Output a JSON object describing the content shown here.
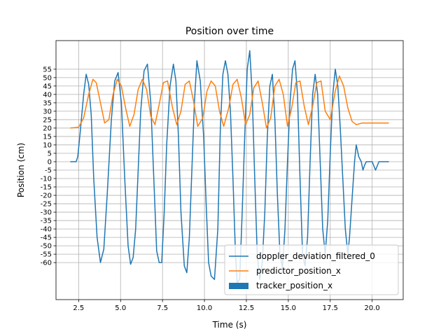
{
  "chart_data": {
    "type": "line",
    "title": "Position over time",
    "xlabel": "Time (s)",
    "ylabel": "Position (cm)",
    "xlim": [
      1.15,
      21.85
    ],
    "ylim": [
      -82,
      72
    ],
    "grid": true,
    "legend_position": "lower right",
    "xticks": [
      2.5,
      5.0,
      7.5,
      10.0,
      12.5,
      15.0,
      17.5,
      20.0
    ],
    "xtick_labels": [
      "2.5",
      "5.0",
      "7.5",
      "10.0",
      "12.5",
      "15.0",
      "17.5",
      "20.0"
    ],
    "yticks": [
      -60,
      -55,
      -50,
      -45,
      -40,
      -35,
      -30,
      -25,
      -20,
      -15,
      -10,
      -5,
      0,
      5,
      10,
      15,
      20,
      25,
      30,
      35,
      40,
      45,
      50,
      55
    ],
    "ytick_labels": [
      "-60",
      "-55",
      "-50",
      "-45",
      "-40",
      "-35",
      "-30",
      "-25",
      "-20",
      "-15",
      "-10",
      "-5",
      "0",
      "5",
      "10",
      "15",
      "20",
      "25",
      "30",
      "35",
      "40",
      "45",
      "50",
      "55"
    ],
    "series": [
      {
        "name": "doppler_deviation_filtered_0",
        "kind": "line",
        "color": "#1f77b4",
        "x": [
          2.0,
          2.35,
          2.45,
          2.6,
          2.8,
          2.95,
          3.1,
          3.25,
          3.4,
          3.6,
          3.8,
          4.0,
          4.2,
          4.45,
          4.65,
          4.85,
          5.05,
          5.25,
          5.45,
          5.6,
          5.75,
          5.9,
          6.05,
          6.2,
          6.4,
          6.6,
          6.8,
          7.0,
          7.15,
          7.3,
          7.45,
          7.6,
          7.75,
          7.95,
          8.15,
          8.3,
          8.45,
          8.6,
          8.8,
          8.95,
          9.1,
          9.25,
          9.4,
          9.55,
          9.75,
          9.95,
          10.1,
          10.25,
          10.4,
          10.6,
          10.8,
          10.95,
          11.1,
          11.25,
          11.4,
          11.55,
          11.7,
          11.85,
          11.95,
          12.1,
          12.25,
          12.4,
          12.55,
          12.7,
          12.85,
          13.0,
          13.15,
          13.3,
          13.45,
          13.6,
          13.75,
          13.9,
          14.05,
          14.2,
          14.35,
          14.5,
          14.65,
          14.8,
          14.95,
          15.1,
          15.25,
          15.4,
          15.55,
          15.7,
          15.85,
          16.0,
          16.15,
          16.3,
          16.45,
          16.6,
          16.75,
          16.9,
          17.05,
          17.2,
          17.35,
          17.5,
          17.65,
          17.8,
          17.95,
          18.1,
          18.25,
          18.4,
          18.55,
          18.65,
          18.75,
          18.85,
          18.95,
          19.05,
          19.2,
          19.35,
          19.45,
          19.55,
          19.65,
          19.8,
          20.0,
          20.2,
          20.4,
          20.6,
          20.8,
          21.0
        ],
        "y": [
          0,
          0,
          3,
          18,
          40,
          52,
          46,
          28,
          -10,
          -45,
          -60,
          -52,
          -20,
          25,
          48,
          53,
          35,
          -10,
          -50,
          -61,
          -57,
          -40,
          -5,
          30,
          54,
          58,
          35,
          -15,
          -53,
          -60,
          -60,
          -30,
          10,
          45,
          58,
          48,
          15,
          -30,
          -62,
          -66,
          -45,
          -5,
          35,
          60,
          48,
          15,
          -25,
          -60,
          -68,
          -70,
          -40,
          20,
          52,
          60,
          52,
          30,
          -10,
          -55,
          -72,
          -70,
          -30,
          15,
          55,
          66,
          40,
          -10,
          -55,
          -70,
          -60,
          -30,
          15,
          45,
          52,
          25,
          -20,
          -55,
          -63,
          -40,
          0,
          35,
          55,
          60,
          40,
          -10,
          -55,
          -62,
          -45,
          0,
          40,
          52,
          40,
          0,
          -40,
          -55,
          -35,
          5,
          40,
          55,
          45,
          20,
          -10,
          -40,
          -55,
          -45,
          -30,
          -15,
          0,
          10,
          3,
          0,
          -5,
          -2,
          0,
          0,
          0,
          -5,
          0,
          0,
          0,
          0
        ]
      },
      {
        "name": "predictor_position_x",
        "kind": "line",
        "color": "#ff7f0e",
        "x": [
          2.0,
          2.5,
          2.8,
          3.1,
          3.35,
          3.55,
          3.8,
          4.05,
          4.3,
          4.55,
          4.8,
          5.05,
          5.3,
          5.55,
          5.8,
          6.05,
          6.3,
          6.55,
          6.8,
          7.05,
          7.3,
          7.55,
          7.8,
          8.1,
          8.35,
          8.6,
          8.85,
          9.1,
          9.35,
          9.6,
          9.9,
          10.15,
          10.4,
          10.65,
          10.9,
          11.15,
          11.45,
          11.7,
          11.95,
          12.2,
          12.45,
          12.7,
          12.95,
          13.2,
          13.45,
          13.7,
          13.95,
          14.2,
          14.45,
          14.7,
          14.95,
          15.2,
          15.45,
          15.7,
          15.95,
          16.2,
          16.45,
          16.7,
          16.95,
          17.2,
          17.5,
          17.8,
          18.05,
          18.3,
          18.55,
          18.8,
          19.05,
          19.4,
          20.0,
          20.5,
          21.0
        ],
        "y": [
          20,
          20.5,
          26,
          40,
          49,
          47,
          35,
          23,
          25,
          40,
          49,
          45,
          32,
          21,
          28,
          43,
          49,
          43,
          27,
          22,
          34,
          47,
          48,
          32,
          22,
          30,
          46,
          48,
          36,
          21,
          26,
          42,
          48,
          45,
          30,
          21,
          32,
          46,
          49,
          38,
          22,
          28,
          44,
          48,
          35,
          20,
          26,
          45,
          49,
          40,
          21,
          32,
          47,
          48,
          33,
          22,
          33,
          47,
          48,
          30,
          25,
          42,
          51,
          45,
          32,
          24,
          22,
          23,
          23,
          23,
          23
        ]
      },
      {
        "name": "tracker_position_x",
        "kind": "patch",
        "color": "#1f77b4",
        "x": [],
        "y": []
      }
    ]
  }
}
